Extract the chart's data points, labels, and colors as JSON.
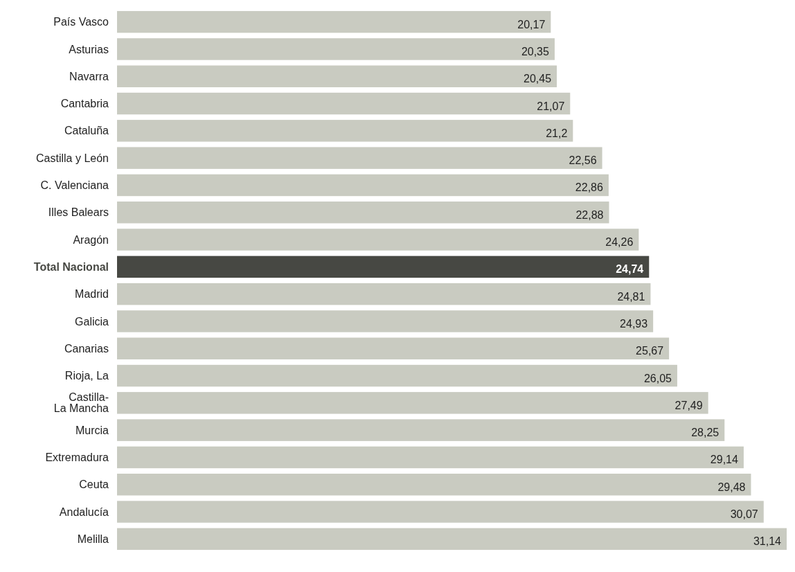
{
  "chart_data": {
    "type": "bar",
    "orientation": "horizontal",
    "categories": [
      "País Vasco",
      "Asturias",
      "Navarra",
      "Cantabria",
      "Cataluña",
      "Castilla y León",
      "C. Valenciana",
      "Illes Balears",
      "Aragón",
      "Total Nacional",
      "Madrid",
      "Galicia",
      "Canarias",
      "Rioja, La",
      "Castilla-\nLa Mancha",
      "Murcia",
      "Extremadura",
      "Ceuta",
      "Andalucía",
      "Melilla"
    ],
    "values": [
      20.17,
      20.35,
      20.45,
      21.07,
      21.2,
      22.56,
      22.86,
      22.88,
      24.26,
      24.74,
      24.81,
      24.93,
      25.67,
      26.05,
      27.49,
      28.25,
      29.14,
      29.48,
      30.07,
      31.14
    ],
    "value_labels": [
      "20,17",
      "20,35",
      "20,45",
      "21,07",
      "21,2",
      "22,56",
      "22,86",
      "22,88",
      "24,26",
      "24,74",
      "24,81",
      "24,93",
      "25,67",
      "26,05",
      "27,49",
      "28,25",
      "29,14",
      "29,48",
      "30,07",
      "31,14"
    ],
    "colors": [
      "#c9cbc1",
      "#c9cbc1",
      "#c9cbc1",
      "#c9cbc1",
      "#c9cbc1",
      "#c9cbc1",
      "#c9cbc1",
      "#c9cbc1",
      "#c9cbc1",
      "#474843",
      "#c9cbc1",
      "#c9cbc1",
      "#c9cbc1",
      "#c9cbc1",
      "#c9cbc1",
      "#c9cbc1",
      "#c9cbc1",
      "#c9cbc1",
      "#c9cbc1",
      "#c9cbc1"
    ]
  }
}
